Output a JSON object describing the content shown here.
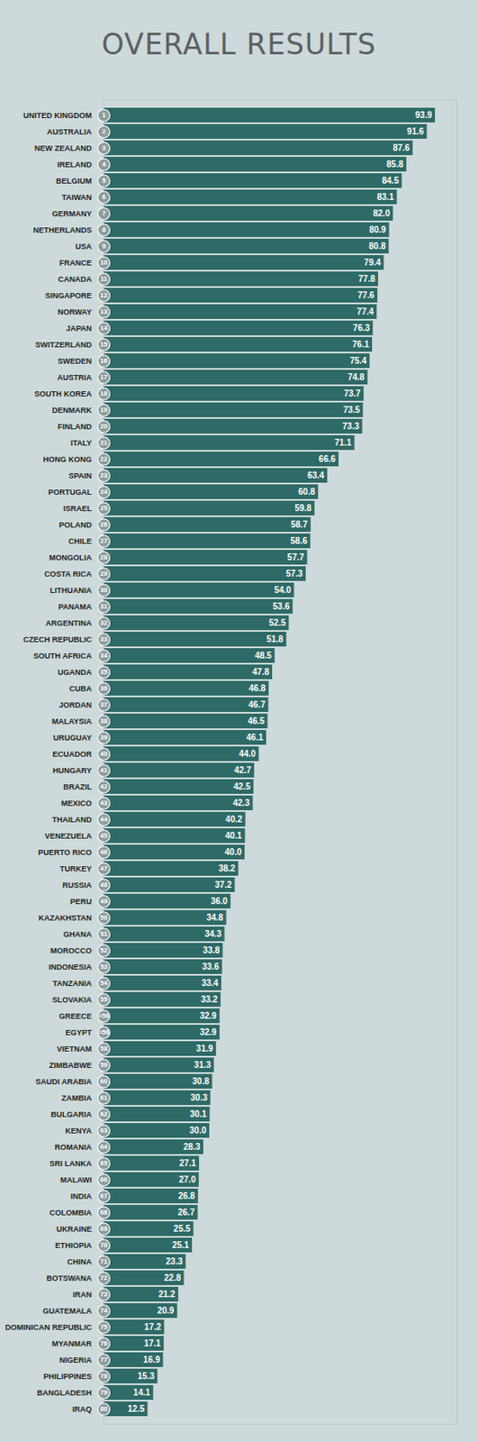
{
  "chart_data": {
    "type": "bar",
    "title": "OVERALL RESULTS",
    "orientation": "horizontal",
    "data_labels": true,
    "tick_labels": "y",
    "color": "#2e6a66",
    "xlim": [
      0,
      100
    ],
    "categories": [
      "UNITED KINGDOM",
      "AUSTRALIA",
      "NEW ZEALAND",
      "IRELAND",
      "BELGIUM",
      "TAIWAN",
      "GERMANY",
      "NETHERLANDS",
      "USA",
      "FRANCE",
      "CANADA",
      "SINGAPORE",
      "NORWAY",
      "JAPAN",
      "SWITZERLAND",
      "SWEDEN",
      "AUSTRIA",
      "SOUTH KOREA",
      "DENMARK",
      "FINLAND",
      "ITALY",
      "HONG KONG",
      "SPAIN",
      "PORTUGAL",
      "ISRAEL",
      "POLAND",
      "CHILE",
      "MONGOLIA",
      "COSTA RICA",
      "LITHUANIA",
      "PANAMA",
      "ARGENTINA",
      "CZECH REPUBLIC",
      "SOUTH AFRICA",
      "UGANDA",
      "CUBA",
      "JORDAN",
      "MALAYSIA",
      "URUGUAY",
      "ECUADOR",
      "HUNGARY",
      "BRAZIL",
      "MEXICO",
      "THAILAND",
      "VENEZUELA",
      "PUERTO RICO",
      "TURKEY",
      "RUSSIA",
      "PERU",
      "KAZAKHSTAN",
      "GHANA",
      "MOROCCO",
      "INDONESIA",
      "TANZANIA",
      "SLOVAKIA",
      "GREECE",
      "EGYPT",
      "VIETNAM",
      "ZIMBABWE",
      "SAUDI ARABIA",
      "ZAMBIA",
      "BULGARIA",
      "KENYA",
      "ROMANIA",
      "SRI LANKA",
      "MALAWI",
      "INDIA",
      "COLOMBIA",
      "UKRAINE",
      "ETHIOPIA",
      "CHINA",
      "BOTSWANA",
      "IRAN",
      "GUATEMALA",
      "DOMINICAN REPUBLIC",
      "MYANMAR",
      "NIGERIA",
      "PHILIPPINES",
      "BANGLADESH",
      "IRAQ"
    ],
    "values": [
      93.9,
      91.6,
      87.6,
      85.8,
      84.5,
      83.1,
      82.0,
      80.9,
      80.8,
      79.4,
      77.8,
      77.6,
      77.4,
      76.3,
      76.1,
      75.4,
      74.8,
      73.7,
      73.5,
      73.3,
      71.1,
      66.6,
      63.4,
      60.8,
      59.8,
      58.7,
      58.6,
      57.7,
      57.3,
      54.0,
      53.6,
      52.5,
      51.8,
      48.5,
      47.8,
      46.8,
      46.7,
      46.5,
      46.1,
      44.0,
      42.7,
      42.5,
      42.3,
      40.2,
      40.1,
      40.0,
      38.2,
      37.2,
      36.0,
      34.8,
      34.3,
      33.8,
      33.6,
      33.4,
      33.2,
      32.9,
      32.9,
      31.9,
      31.3,
      30.8,
      30.3,
      30.1,
      30.0,
      28.3,
      27.1,
      27.0,
      26.8,
      26.7,
      25.5,
      25.1,
      23.3,
      22.8,
      21.2,
      20.9,
      17.2,
      17.1,
      16.9,
      15.3,
      14.1,
      12.5
    ],
    "value_labels": [
      "93.9",
      "91.6",
      "87.6",
      "85.8",
      "84.5",
      "83.1",
      "82.0",
      "80.9",
      "80.8",
      "79.4",
      "77.8",
      "77.6",
      "77.4",
      "76.3",
      "76.1",
      "75.4",
      "74.8",
      "73.7",
      "73.5",
      "73.3",
      "71.1",
      "66.6",
      "63.4",
      "60.8",
      "59.8",
      "58.7",
      "58.6",
      "57.7",
      "57.3",
      "54.0",
      "53.6",
      "52.5",
      "51.8",
      "48.5",
      "47.8",
      "46.8",
      "46.7",
      "46.5",
      "46.1",
      "44.0",
      "42.7",
      "42.5",
      "42.3",
      "40.2",
      "40.1",
      "40.0",
      "38.2",
      "37.2",
      "36.0",
      "34.8",
      "34.3",
      "33.8",
      "33.6",
      "33.4",
      "33.2",
      "32.9",
      "32.9",
      "31.9",
      "31.3",
      "30.8",
      "30.3",
      "30.1",
      "30.0",
      "28.3",
      "27.1",
      "27.0",
      "26.8",
      "26.7",
      "25.5",
      "25.1",
      "23.3",
      "22.8",
      "21.2",
      "20.9",
      "17.2",
      "17.1",
      "16.9",
      "15.3",
      "14.1",
      "12.5"
    ],
    "ranks": [
      "1",
      "2",
      "3",
      "4",
      "5",
      "6",
      "7",
      "8",
      "9",
      "10",
      "11",
      "12",
      "13",
      "14",
      "15",
      "16",
      "17",
      "18",
      "19",
      "20",
      "21",
      "22",
      "23",
      "24",
      "25",
      "26",
      "27",
      "28",
      "29",
      "30",
      "31",
      "32",
      "33",
      "34",
      "35",
      "36",
      "37",
      "38",
      "39",
      "40",
      "41",
      "42",
      "43",
      "44",
      "45",
      "46",
      "47",
      "48",
      "49",
      "50",
      "51",
      "52",
      "53",
      "54",
      "55",
      "=56",
      "=56",
      "58",
      "59",
      "60",
      "61",
      "62",
      "63",
      "64",
      "65",
      "66",
      "67",
      "68",
      "69",
      "70",
      "71",
      "72",
      "73",
      "74",
      "75",
      "76",
      "77",
      "78",
      "79",
      "80"
    ]
  }
}
